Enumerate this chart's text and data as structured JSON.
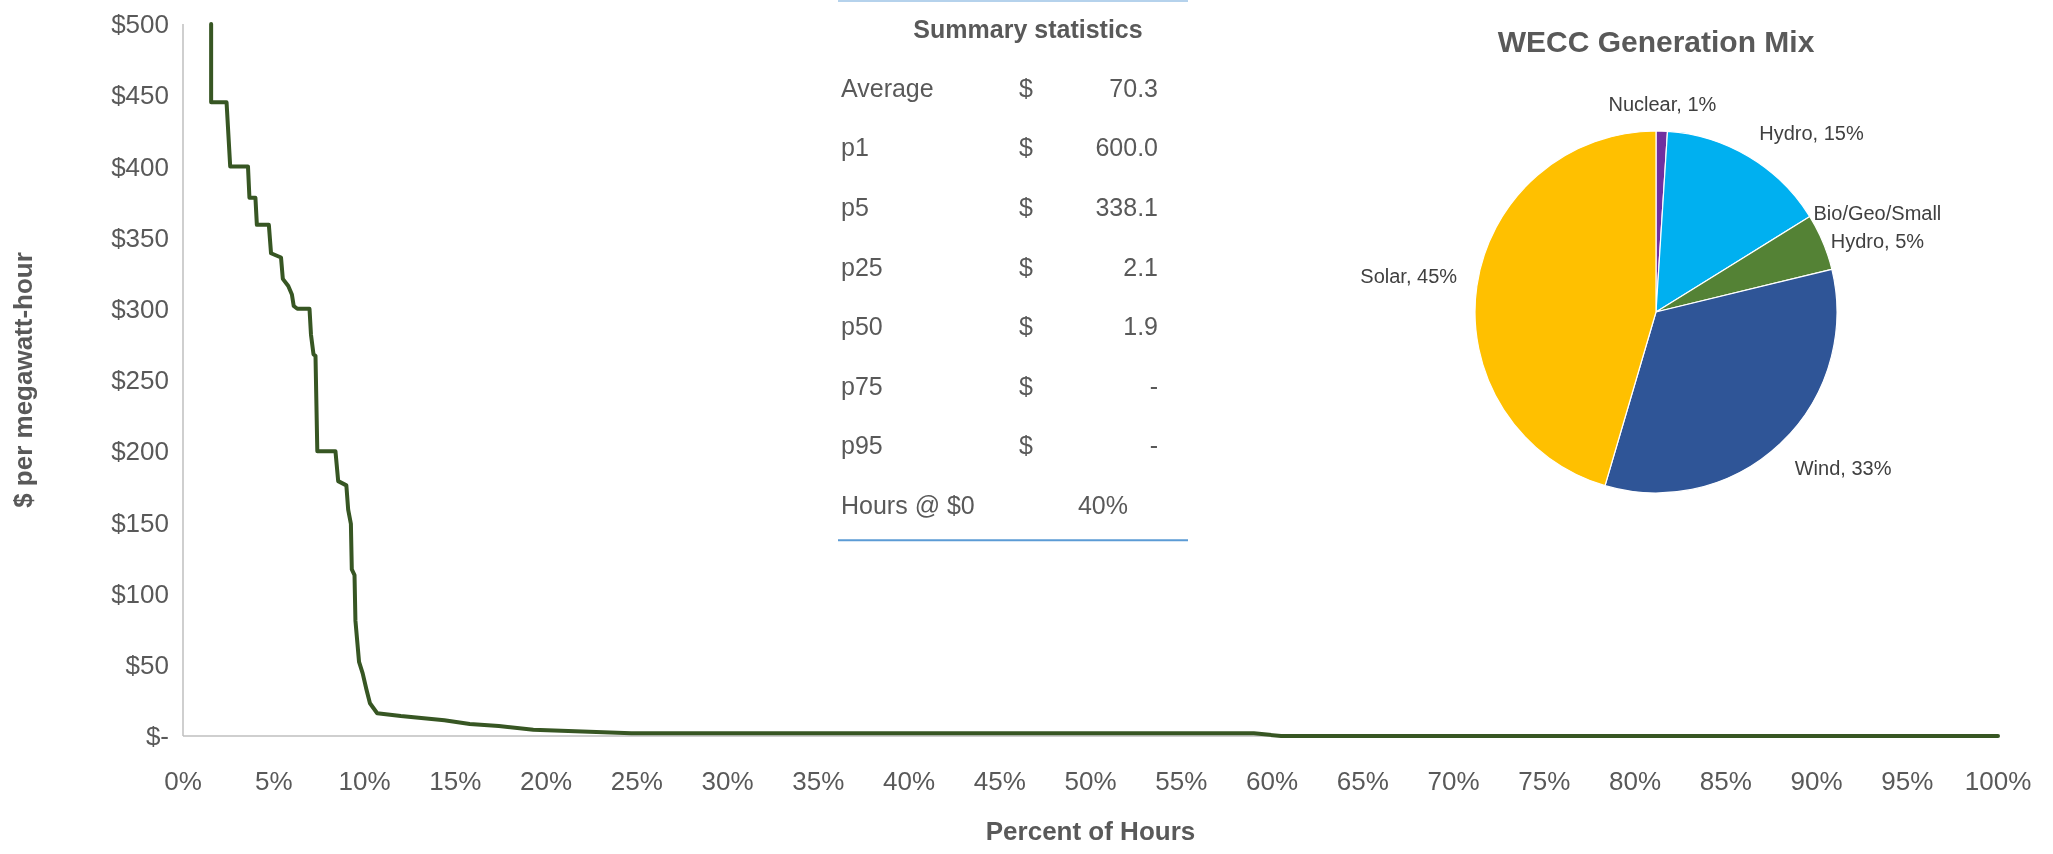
{
  "chart_data": [
    {
      "type": "line",
      "xlabel": "Percent of Hours",
      "ylabel": "$ per megawatt-hour",
      "xlim": [
        0,
        100
      ],
      "ylim": [
        0,
        500
      ],
      "xticks": [
        {
          "value": 0,
          "label": "0%"
        },
        {
          "value": 5,
          "label": "5%"
        },
        {
          "value": 10,
          "label": "10%"
        },
        {
          "value": 15,
          "label": "15%"
        },
        {
          "value": 20,
          "label": "20%"
        },
        {
          "value": 25,
          "label": "25%"
        },
        {
          "value": 30,
          "label": "30%"
        },
        {
          "value": 35,
          "label": "35%"
        },
        {
          "value": 40,
          "label": "40%"
        },
        {
          "value": 45,
          "label": "45%"
        },
        {
          "value": 50,
          "label": "50%"
        },
        {
          "value": 55,
          "label": "55%"
        },
        {
          "value": 60,
          "label": "60%"
        },
        {
          "value": 65,
          "label": "65%"
        },
        {
          "value": 70,
          "label": "70%"
        },
        {
          "value": 75,
          "label": "75%"
        },
        {
          "value": 80,
          "label": "80%"
        },
        {
          "value": 85,
          "label": "85%"
        },
        {
          "value": 90,
          "label": "90%"
        },
        {
          "value": 95,
          "label": "95%"
        },
        {
          "value": 100,
          "label": "100%"
        }
      ],
      "yticks": [
        {
          "value": 0,
          "label": "$-"
        },
        {
          "value": 50,
          "label": "$50"
        },
        {
          "value": 100,
          "label": "$100"
        },
        {
          "value": 150,
          "label": "$150"
        },
        {
          "value": 200,
          "label": "$200"
        },
        {
          "value": 250,
          "label": "$250"
        },
        {
          "value": 300,
          "label": "$300"
        },
        {
          "value": 350,
          "label": "$350"
        },
        {
          "value": 400,
          "label": "$400"
        },
        {
          "value": 450,
          "label": "$450"
        },
        {
          "value": 500,
          "label": "$500"
        }
      ],
      "grid": false,
      "marker": "none",
      "line_style": "solid",
      "series": [
        {
          "color": "#375623",
          "x": [
            1.55,
            1.55,
            2.4,
            2.6,
            3.58,
            3.66,
            3.99,
            4.07,
            4.73,
            4.85,
            5.4,
            5.5,
            5.8,
            6.0,
            6.1,
            6.3,
            6.97,
            7.05,
            7.19,
            7.3,
            7.4,
            8.4,
            8.55,
            9.0,
            9.1,
            9.25,
            9.3,
            9.45,
            9.5,
            9.7,
            9.9,
            10.1,
            10.3,
            10.7,
            12.0,
            14.4,
            15.8,
            17.4,
            19.3,
            24.7,
            40,
            59,
            60.5,
            70,
            100
          ],
          "values": [
            500,
            445,
            445,
            400,
            400,
            378,
            378,
            359,
            359,
            339,
            336,
            321,
            316,
            310,
            302,
            300,
            300,
            282,
            268,
            267,
            200,
            200,
            179,
            176,
            159,
            149,
            117,
            113,
            81,
            52,
            44,
            33,
            23,
            16,
            14,
            11,
            8.5,
            7,
            4.4,
            2,
            1.9,
            1.9,
            0,
            0,
            0
          ]
        }
      ]
    },
    {
      "type": "other",
      "title": "Summary statistics",
      "categories": [
        "Average",
        "p1",
        "p5",
        "p25",
        "p50",
        "p75",
        "p95",
        "Hours @ $0"
      ],
      "value_labels": [
        "$ 70.3",
        "$ 600.0",
        "$ 338.1",
        "$ 2.1",
        "$ 1.9",
        "$ -",
        "$ -",
        "40%"
      ]
    },
    {
      "type": "pie",
      "title": "WECC Generation Mix",
      "categories": [
        "Nuclear",
        "Hydro",
        "Bio/Geo/Small Hydro",
        "Wind",
        "Solar"
      ],
      "values": [
        1,
        15,
        5,
        33,
        45
      ],
      "value_labels": [
        "1%",
        "15%",
        "5%",
        "33%",
        "45%"
      ],
      "colors": [
        "#7030a0",
        "#00b0f0",
        "#548235",
        "#2f5597",
        "#ffc000"
      ]
    }
  ]
}
